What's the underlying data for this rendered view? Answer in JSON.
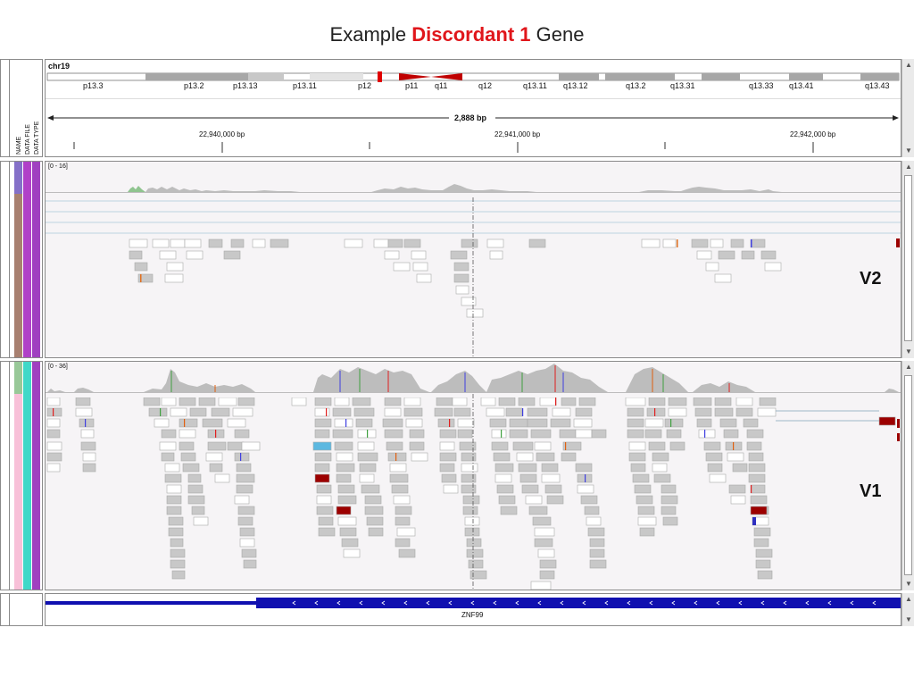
{
  "title": {
    "prefix": "Example",
    "highlight": "Discordant 1",
    "suffix": "Gene"
  },
  "header": {
    "chromosome": "chr19",
    "bands": [
      "p13.3",
      "p13.2",
      "p13.13",
      "p13.11",
      "p12",
      "p11",
      "q11",
      "q12",
      "q13.11",
      "q13.12",
      "q13.2",
      "q13.31",
      "q13.33",
      "q13.41",
      "q13.43"
    ],
    "span_label": "2,888 bp",
    "ticks": [
      "22,940,000 bp",
      "22,941,000 bp",
      "22,942,000 bp"
    ],
    "attribute_labels": [
      "NAME",
      "DATA FILE",
      "DATA TYPE"
    ]
  },
  "track_v2": {
    "range": "[0 - 16]",
    "label": "V2"
  },
  "track_v1": {
    "range": "[0 - 36]",
    "label": "V1"
  },
  "gene_track": {
    "gene_name": "ZNF99"
  },
  "colors": {
    "highlight": "#e0161b",
    "gene": "#1010b0",
    "read": "#c4c4c4",
    "coverage": "#bdbdbd",
    "centromere": "#c00000"
  }
}
